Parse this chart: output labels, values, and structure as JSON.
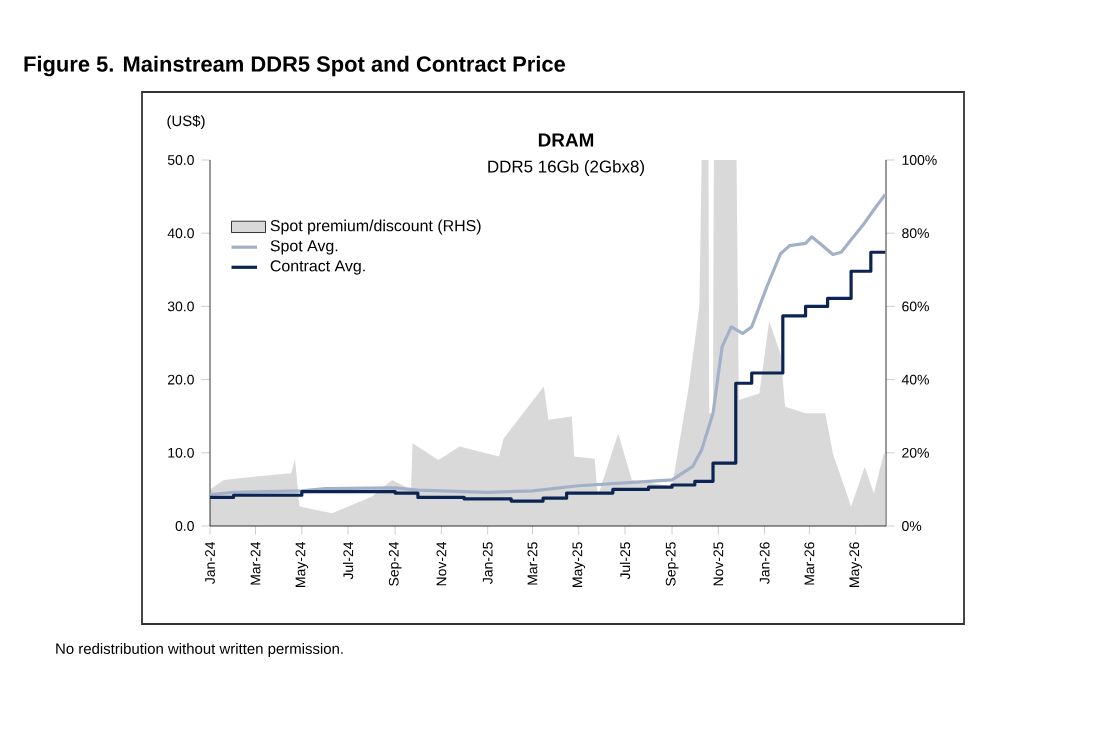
{
  "chart_data": {
    "type": "line",
    "title": "Figure 5. Mainstream DDR5 Spot and Contract Price",
    "subtitle": "DRAM",
    "ylabel": "(US$)",
    "annotations": [
      "DDR5 16Gb (2Gbx8)",
      "No redistribution without written permission."
    ],
    "xlim": [
      "2024-01-01",
      "2026-06-10"
    ],
    "xticks": [
      {
        "value": "2024-01-01",
        "label": "Jan-24"
      },
      {
        "value": "2024-03-01",
        "label": "Mar-24"
      },
      {
        "value": "2024-05-01",
        "label": "May-24"
      },
      {
        "value": "2024-07-01",
        "label": "Jul-24"
      },
      {
        "value": "2024-09-01",
        "label": "Sep-24"
      },
      {
        "value": "2024-11-01",
        "label": "Nov-24"
      },
      {
        "value": "2025-01-01",
        "label": "Jan-25"
      },
      {
        "value": "2025-03-01",
        "label": "Mar-25"
      },
      {
        "value": "2025-05-01",
        "label": "May-25"
      },
      {
        "value": "2025-07-01",
        "label": "Jul-25"
      },
      {
        "value": "2025-09-01",
        "label": "Sep-25"
      },
      {
        "value": "2025-11-01",
        "label": "Nov-25"
      },
      {
        "value": "2026-01-01",
        "label": "Jan-26"
      },
      {
        "value": "2026-03-01",
        "label": "Mar-26"
      },
      {
        "value": "2026-05-01",
        "label": "May-26"
      }
    ],
    "ylim": [
      0,
      50
    ],
    "yticks": [
      {
        "value": 0,
        "label": "0.0"
      },
      {
        "value": 10,
        "label": "10.0"
      },
      {
        "value": 20,
        "label": "20.0"
      },
      {
        "value": 30,
        "label": "30.0"
      },
      {
        "value": 40,
        "label": "40.0"
      },
      {
        "value": 50,
        "label": "50.0"
      }
    ],
    "y2lim": [
      0,
      100
    ],
    "y2ticks": [
      {
        "value": 0,
        "label": "0%"
      },
      {
        "value": 20,
        "label": "20%"
      },
      {
        "value": 40,
        "label": "40%"
      },
      {
        "value": 60,
        "label": "60%"
      },
      {
        "value": 80,
        "label": "80%"
      },
      {
        "value": 100,
        "label": "100%"
      }
    ],
    "legend": "top left",
    "series": [
      {
        "name": "Spot premium/discount (RHS)",
        "type": "area",
        "axis": "y2",
        "color": "#d9d9d9",
        "x": [
          "2024-01-01",
          "2024-01-19",
          "2024-03-01",
          "2024-04-17",
          "2024-04-22",
          "2024-04-28",
          "2024-06-10",
          "2024-08-01",
          "2024-08-28",
          "2024-09-22",
          "2024-09-24",
          "2024-10-28",
          "2024-11-25",
          "2025-01-16",
          "2025-01-22",
          "2025-03-16",
          "2025-03-22",
          "2025-04-22",
          "2025-04-25",
          "2025-05-22",
          "2025-05-26",
          "2025-06-22",
          "2025-07-10",
          "2025-09-01",
          "2025-09-23",
          "2025-10-07",
          "2025-10-10",
          "2025-10-19",
          "2025-10-20",
          "2025-10-25",
          "2025-10-26",
          "2025-11-25",
          "2025-11-28",
          "2025-12-25",
          "2026-01-07",
          "2026-01-22",
          "2026-01-28",
          "2026-02-24",
          "2026-03-22",
          "2026-04-01",
          "2026-04-16",
          "2026-04-25",
          "2026-05-13",
          "2026-05-25",
          "2026-06-07",
          "2026-06-09"
        ],
        "values": [
          10,
          12.6,
          13.5,
          14.4,
          18.4,
          5.3,
          3.5,
          8,
          12.6,
          10,
          22.6,
          18,
          21.7,
          19,
          23.9,
          38.1,
          29,
          29.9,
          19,
          18.4,
          8,
          25.3,
          12.6,
          10.8,
          38,
          60,
          100,
          100,
          30.8,
          30.8,
          100,
          100,
          34.4,
          36.2,
          56,
          47,
          32.6,
          30.8,
          30.8,
          19.8,
          10.8,
          5.3,
          16.2,
          8.9,
          19.8,
          19.8
        ]
      },
      {
        "name": "Spot Avg.",
        "color": "#a3b1c8",
        "x": [
          "2024-01-01",
          "2024-02-01",
          "2024-05-01",
          "2024-06-01",
          "2024-09-01",
          "2024-10-01",
          "2025-01-01",
          "2025-03-01",
          "2025-05-01",
          "2025-07-01",
          "2025-09-01",
          "2025-09-28",
          "2025-10-10",
          "2025-10-25",
          "2025-11-06",
          "2025-11-18",
          "2025-12-03",
          "2025-12-15",
          "2026-01-04",
          "2026-01-22",
          "2026-02-03",
          "2026-02-24",
          "2026-03-04",
          "2026-03-15",
          "2026-04-01",
          "2026-04-12",
          "2026-04-25",
          "2026-05-12",
          "2026-05-25",
          "2026-06-09"
        ],
        "values": [
          4.3,
          4.6,
          4.8,
          5.1,
          5.2,
          4.9,
          4.6,
          4.8,
          5.5,
          5.9,
          6.3,
          8.1,
          10.4,
          15.4,
          24.5,
          27.2,
          26.3,
          27.2,
          32.7,
          37.2,
          38.3,
          38.6,
          39.5,
          38.6,
          37.1,
          37.4,
          39.1,
          41.3,
          43.2,
          45.3
        ]
      },
      {
        "name": "Contract Avg.",
        "type": "step",
        "color": "#0c2452",
        "x": [
          "2024-01-01",
          "2024-02-01",
          "2024-05-01",
          "2024-09-01",
          "2024-10-01",
          "2024-12-01",
          "2025-02-01",
          "2025-03-15",
          "2025-04-15",
          "2025-06-15",
          "2025-08-01",
          "2025-09-01",
          "2025-10-01",
          "2025-10-25",
          "2025-11-24",
          "2025-12-15",
          "2026-01-25",
          "2026-02-24",
          "2026-03-25",
          "2026-04-25",
          "2026-05-21",
          "2026-06-09"
        ],
        "values": [
          3.9,
          4.2,
          4.7,
          4.5,
          3.9,
          3.7,
          3.4,
          3.8,
          4.5,
          5.0,
          5.3,
          5.6,
          6.1,
          8.6,
          19.5,
          20.9,
          28.7,
          30.0,
          31.1,
          34.8,
          37.4,
          37.4
        ]
      }
    ]
  }
}
